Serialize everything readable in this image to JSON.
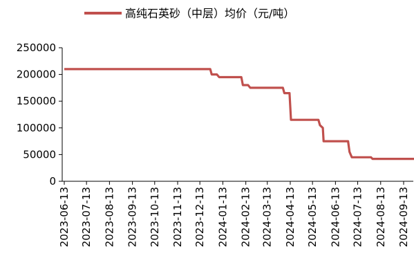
{
  "chart_data": {
    "type": "line",
    "legend": {
      "position": "top",
      "entries": [
        "高纯石英砂（中层）均价（元/吨）"
      ]
    },
    "series": [
      {
        "name": "高纯石英砂（中层）均价（元/吨）",
        "color": "#C0504D",
        "points": [
          [
            "2023-06-13",
            210000
          ],
          [
            "2023-12-27",
            210000
          ],
          [
            "2023-12-29",
            200000
          ],
          [
            "2024-01-05",
            200000
          ],
          [
            "2024-01-08",
            195000
          ],
          [
            "2024-02-07",
            195000
          ],
          [
            "2024-02-09",
            180000
          ],
          [
            "2024-02-16",
            180000
          ],
          [
            "2024-02-19",
            175000
          ],
          [
            "2024-04-03",
            175000
          ],
          [
            "2024-04-05",
            165000
          ],
          [
            "2024-04-12",
            165000
          ],
          [
            "2024-04-14",
            115000
          ],
          [
            "2024-05-21",
            115000
          ],
          [
            "2024-05-23",
            105000
          ],
          [
            "2024-05-27",
            100000
          ],
          [
            "2024-05-28",
            75000
          ],
          [
            "2024-06-30",
            75000
          ],
          [
            "2024-07-02",
            55000
          ],
          [
            "2024-07-05",
            45000
          ],
          [
            "2024-07-31",
            45000
          ],
          [
            "2024-08-02",
            42000
          ],
          [
            "2024-10-03",
            42000
          ]
        ]
      }
    ],
    "x_ticks": [
      "2023-06-13",
      "2023-07-13",
      "2023-08-13",
      "2023-09-13",
      "2023-10-13",
      "2023-11-13",
      "2023-12-13",
      "2024-01-13",
      "2024-02-13",
      "2024-03-13",
      "2024-04-13",
      "2024-05-13",
      "2024-06-13",
      "2024-07-13",
      "2024-08-13",
      "2024-09-13"
    ],
    "y_ticks": [
      "0",
      "50000",
      "100000",
      "150000",
      "200000",
      "250000"
    ],
    "ylim": [
      0,
      250000
    ],
    "xlim": [
      "2023-06-13",
      "2024-10-03"
    ],
    "grid": false
  }
}
